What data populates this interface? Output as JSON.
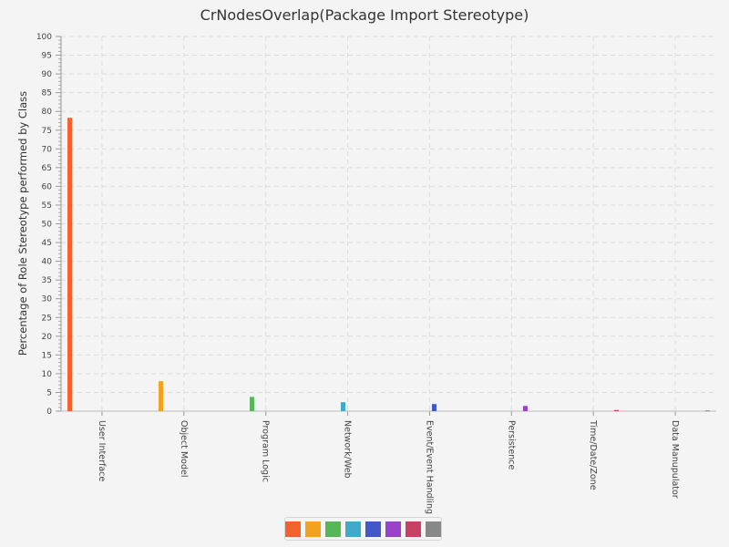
{
  "chart_data": {
    "type": "bar",
    "title": "CrNodesOverlap(Package Import Stereotype)",
    "xlabel": "",
    "ylabel": "Percentage of Role Stereotype performed by Class",
    "ylim": [
      0,
      100
    ],
    "ytick_step": 5,
    "grid": true,
    "legend_placement": "bottom-center",
    "categories": [
      "User Interface",
      "Object Model",
      "Program Logic",
      "Network/Web",
      "Event/Event Handling",
      "Persistence",
      "Time/Date/Zone",
      "Data Manupulator"
    ],
    "series": [
      {
        "color": "#f3622d",
        "values": [
          78.3,
          0,
          0,
          0,
          0,
          0,
          0,
          0
        ]
      },
      {
        "color": "#f3a21d",
        "values": [
          0,
          8.0,
          0,
          0,
          0,
          0,
          0,
          0
        ]
      },
      {
        "color": "#57b757",
        "values": [
          0,
          0,
          3.8,
          0,
          0,
          0,
          0,
          0
        ]
      },
      {
        "color": "#41a9c9",
        "values": [
          0,
          0,
          0,
          2.4,
          0,
          0,
          0,
          0
        ]
      },
      {
        "color": "#4258c9",
        "values": [
          0,
          0,
          0,
          0,
          1.9,
          0,
          0,
          0
        ]
      },
      {
        "color": "#9a42c8",
        "values": [
          0,
          0,
          0,
          0,
          0,
          1.4,
          0,
          0
        ]
      },
      {
        "color": "#c84164",
        "values": [
          0,
          0,
          0,
          0,
          0,
          0,
          0.3,
          0
        ]
      },
      {
        "color": "#888888",
        "values": [
          0,
          0,
          0,
          0,
          0,
          0,
          0,
          0.2
        ]
      }
    ]
  }
}
